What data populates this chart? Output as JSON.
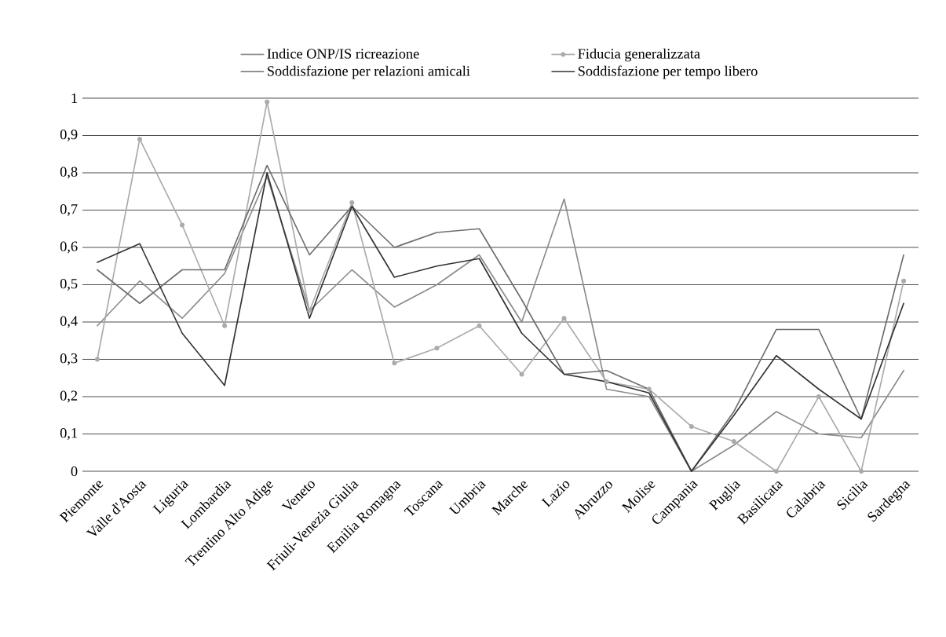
{
  "chart_data": {
    "type": "line",
    "categories": [
      "Piemonte",
      "Valle d'Aosta",
      "Liguria",
      "Lombardia",
      "Trentino Alto Adige",
      "Veneto",
      "Friuli-Venezia Giulia",
      "Emilia Romagna",
      "Toscana",
      "Umbria",
      "Marche",
      "Lazio",
      "Abruzzo",
      "Molise",
      "Campania",
      "Puglia",
      "Basilicata",
      "Calabria",
      "Sicilia",
      "Sardegna"
    ],
    "series": [
      {
        "name": "Indice ONP/IS ricreazione",
        "color": "#8c8c8c",
        "marker": "none",
        "values": [
          0.39,
          0.51,
          0.41,
          0.53,
          0.79,
          0.43,
          0.54,
          0.44,
          0.5,
          0.58,
          0.4,
          0.73,
          0.22,
          0.2,
          0,
          0.07,
          0.16,
          0.1,
          0.09,
          0.27
        ]
      },
      {
        "name": "Fiducia generalizzata",
        "color": "#ababab",
        "marker": "circle",
        "values": [
          0.3,
          0.89,
          0.66,
          0.39,
          0.99,
          0.43,
          0.72,
          0.29,
          0.33,
          0.39,
          0.26,
          0.41,
          0.24,
          0.22,
          0.12,
          0.08,
          0,
          0.2,
          0,
          0.51
        ]
      },
      {
        "name": "Soddisfazione per relazioni amicali",
        "color": "#6e6e6e",
        "marker": "none",
        "values": [
          0.54,
          0.45,
          0.54,
          0.54,
          0.82,
          0.58,
          0.71,
          0.6,
          0.64,
          0.65,
          0.46,
          0.26,
          0.27,
          0.22,
          0,
          0.16,
          0.38,
          0.38,
          0.14,
          0.58
        ]
      },
      {
        "name": "Soddisfazione per tempo libero",
        "color": "#333333",
        "marker": "none",
        "values": [
          0.56,
          0.61,
          0.37,
          0.23,
          0.8,
          0.41,
          0.71,
          0.52,
          0.55,
          0.57,
          0.37,
          0.26,
          0.24,
          0.21,
          0,
          0.15,
          0.31,
          0.22,
          0.14,
          0.45
        ]
      }
    ],
    "ylim": [
      0,
      1
    ],
    "yticks": [
      0,
      {
        "value": 0.1,
        "label": "0,1"
      },
      {
        "value": 0.2,
        "label": "0,2"
      },
      {
        "value": 0.3,
        "label": "0,3"
      },
      {
        "value": 0.4,
        "label": "0,4"
      },
      {
        "value": 0.5,
        "label": "0,5"
      },
      {
        "value": 0.6,
        "label": "0,6"
      },
      {
        "value": 0.7,
        "label": "0,7"
      },
      {
        "value": 0.8,
        "label": "0,8"
      },
      {
        "value": 0.9,
        "label": "0,9"
      },
      1
    ],
    "grid": "y",
    "legend": "top",
    "line_style": "solid"
  }
}
